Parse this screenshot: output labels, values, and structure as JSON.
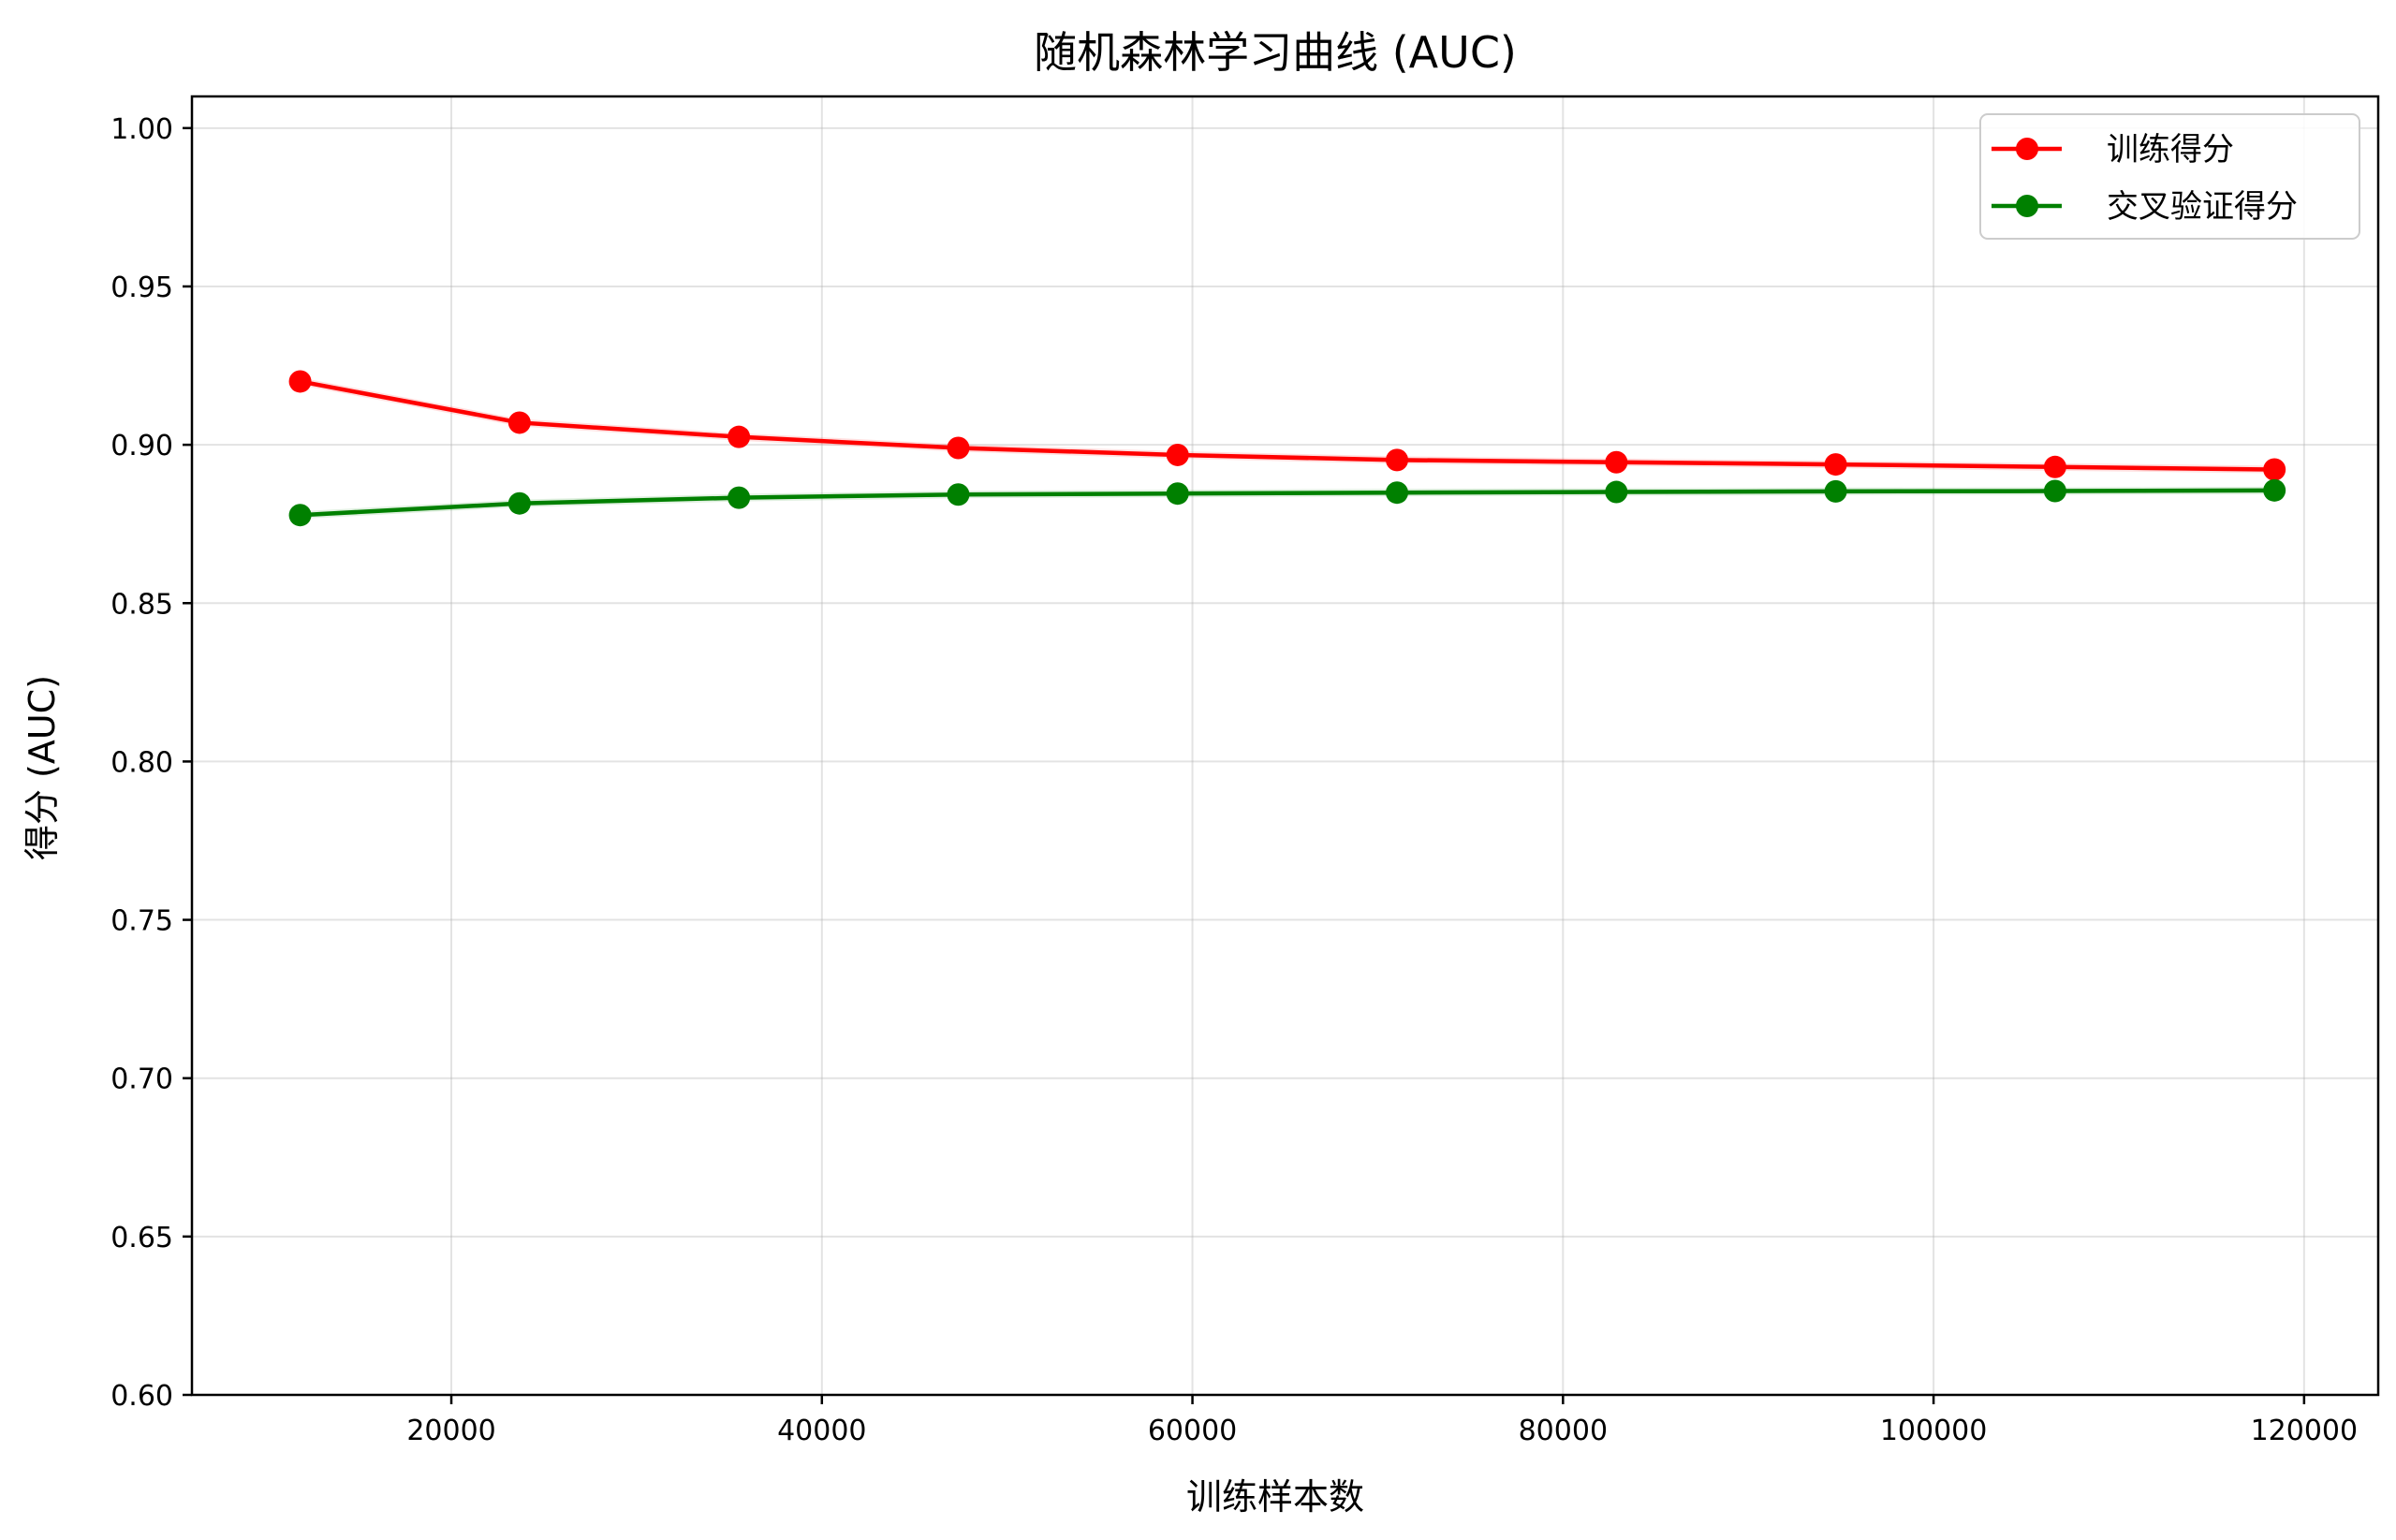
{
  "chart_data": {
    "type": "line",
    "title": "随机森林学习曲线 (AUC)",
    "xlabel": "训练样本数",
    "ylabel": "得分 (AUC)",
    "xlim": [
      6000,
      124000
    ],
    "ylim": [
      0.6,
      1.01
    ],
    "x_ticks": [
      20000,
      40000,
      60000,
      80000,
      100000,
      120000
    ],
    "x_tick_labels": [
      "20000",
      "40000",
      "60000",
      "80000",
      "100000",
      "120000"
    ],
    "y_ticks": [
      0.6,
      0.65,
      0.7,
      0.75,
      0.8,
      0.85,
      0.9,
      0.95,
      1.0
    ],
    "y_tick_labels": [
      "0.60",
      "0.65",
      "0.70",
      "0.75",
      "0.80",
      "0.85",
      "0.90",
      "0.95",
      "1.00"
    ],
    "grid": true,
    "legend_position": "top-right",
    "x": [
      11840,
      23680,
      35520,
      47360,
      59200,
      71040,
      82880,
      94720,
      106560,
      118400
    ],
    "series": [
      {
        "name": "训练得分",
        "color": "#ff0000",
        "marker": "circle",
        "values": [
          0.92,
          0.907,
          0.9025,
          0.899,
          0.8968,
          0.8952,
          0.8945,
          0.8938,
          0.893,
          0.8922
        ],
        "band": 0.0012
      },
      {
        "name": "交叉验证得分",
        "color": "#008000",
        "marker": "circle",
        "values": [
          0.8778,
          0.8815,
          0.8833,
          0.8843,
          0.8846,
          0.8849,
          0.8851,
          0.8853,
          0.8854,
          0.8856
        ],
        "band": 0.0012
      }
    ]
  }
}
